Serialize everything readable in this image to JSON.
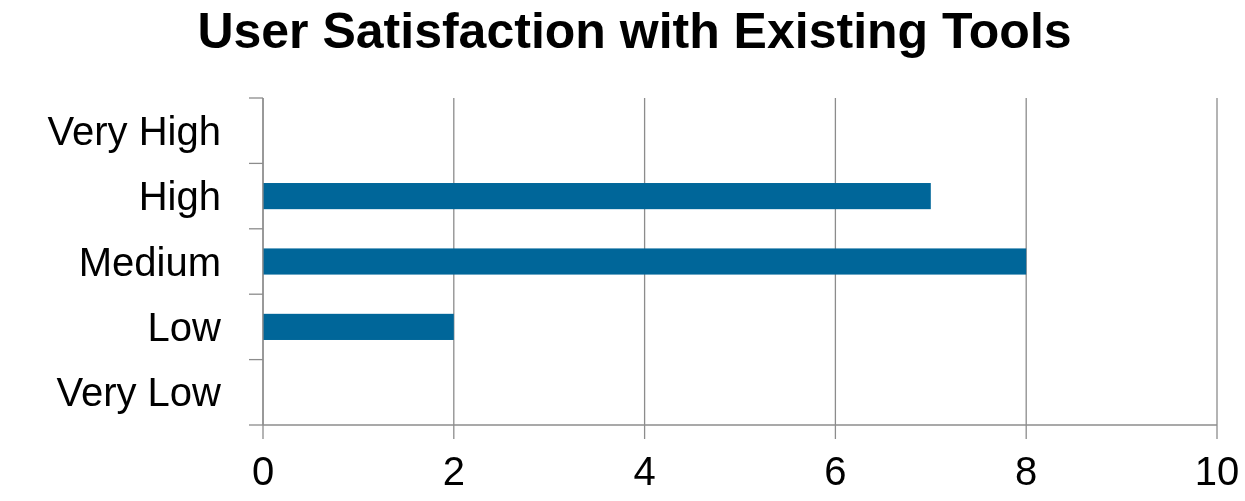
{
  "chart_data": {
    "type": "bar",
    "orientation": "horizontal",
    "title": "User Satisfaction with Existing Tools",
    "categories": [
      "Very High",
      "High",
      "Medium",
      "Low",
      "Very Low"
    ],
    "values": [
      0,
      7,
      8,
      2,
      0
    ],
    "color": "#006699",
    "xlim": [
      0,
      10
    ],
    "xticks": [
      0,
      2,
      4,
      6,
      8,
      10
    ],
    "grid": "x"
  }
}
